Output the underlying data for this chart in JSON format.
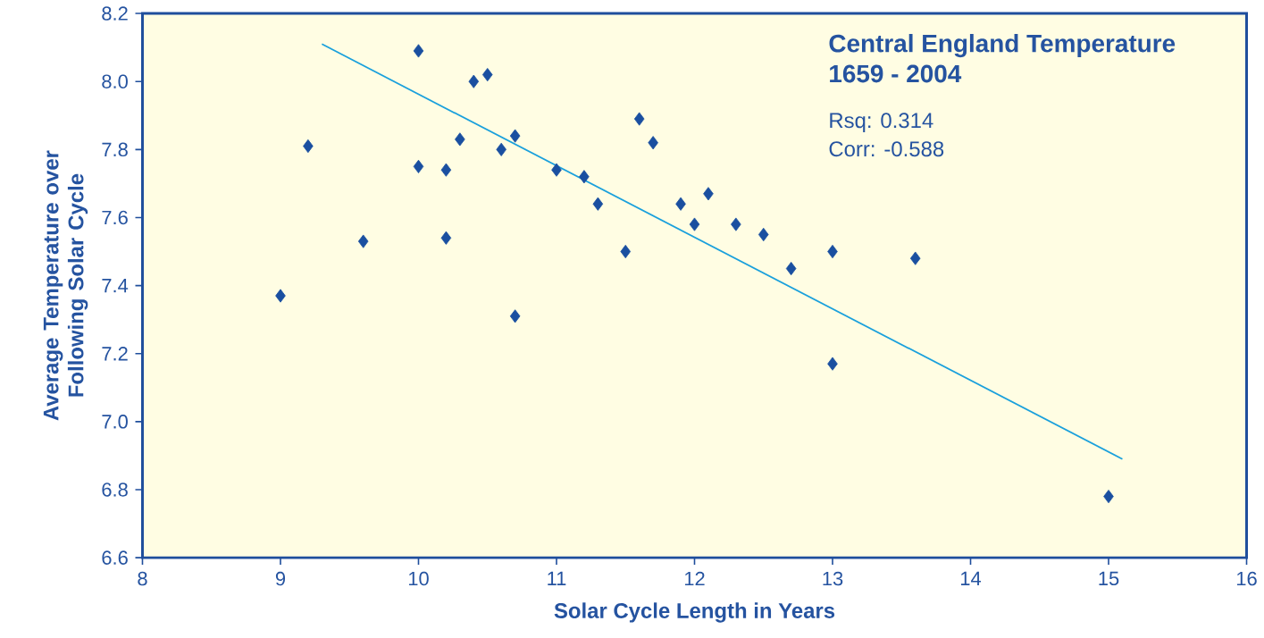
{
  "chart_data": {
    "type": "scatter",
    "title": "Central England Temperature",
    "subtitle": "1659 - 2004",
    "xlabel": "Solar Cycle Length in Years",
    "ylabel": "Average Temperature over Following Solar Cycle",
    "annotations": [
      "Rsq:     0.314",
      "Corr:   -0.588"
    ],
    "series": [
      {
        "type": "scatter",
        "marker": "diamond",
        "color": "#1a4fa0",
        "x": [
          9.0,
          9.2,
          9.6,
          10.0,
          10.0,
          10.2,
          10.2,
          10.3,
          10.4,
          10.5,
          10.6,
          10.7,
          10.7,
          11.0,
          11.2,
          11.3,
          11.5,
          11.6,
          11.7,
          11.9,
          12.0,
          12.1,
          12.3,
          12.5,
          12.7,
          13.0,
          13.0,
          13.6,
          15.0
        ],
        "values": [
          7.37,
          7.81,
          7.53,
          8.09,
          7.75,
          7.74,
          7.54,
          7.83,
          8.0,
          8.02,
          7.8,
          7.84,
          7.31,
          7.74,
          7.72,
          7.64,
          7.5,
          7.89,
          7.82,
          7.64,
          7.58,
          7.67,
          7.58,
          7.55,
          7.45,
          7.5,
          7.17,
          7.48,
          6.78
        ]
      },
      {
        "type": "line",
        "marker": "none",
        "color": "#1aa0dc",
        "x": [
          9.3,
          15.1
        ],
        "values": [
          8.11,
          6.89
        ]
      }
    ],
    "xlim": [
      8,
      16
    ],
    "ylim": [
      6.6,
      8.2
    ],
    "xticks": [
      8,
      9,
      10,
      11,
      12,
      13,
      14,
      15,
      16
    ],
    "yticks": [
      {
        "value": 6.6,
        "label": "6.6"
      },
      {
        "value": 6.8,
        "label": "6.8"
      },
      {
        "value": 7.0,
        "label": "7.0"
      },
      {
        "value": 7.2,
        "label": "7.2"
      },
      {
        "value": 7.4,
        "label": "7.4"
      },
      {
        "value": 7.6,
        "label": "7.6"
      },
      {
        "value": 7.8,
        "label": "7.8"
      },
      {
        "value": 8.0,
        "label": "8.0"
      },
      {
        "value": 8.2,
        "label": "8.2"
      }
    ],
    "grid": false
  }
}
